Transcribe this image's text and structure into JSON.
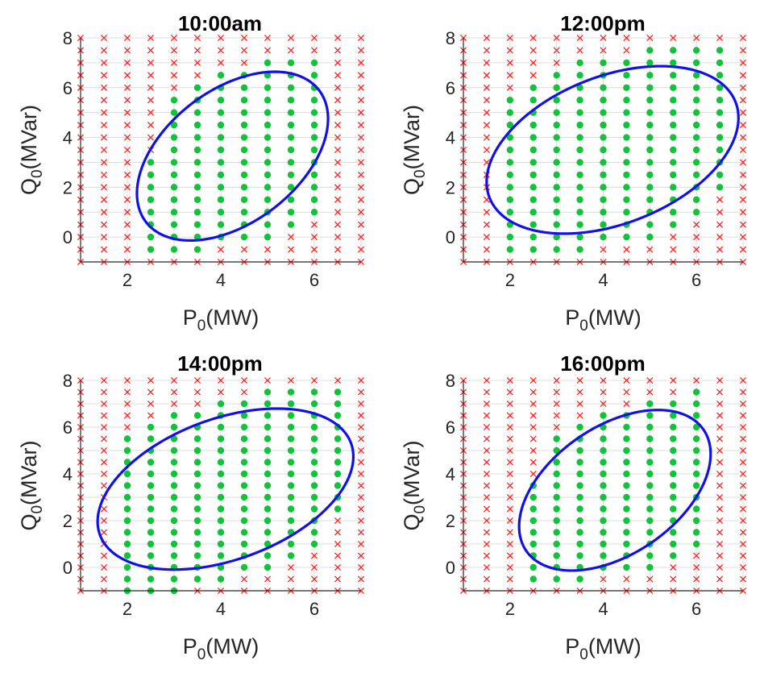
{
  "chart_data": [
    {
      "type": "scatter",
      "title": "10:00am",
      "xlabel": {
        "base": "P",
        "sub": "0",
        "unit": "(MW)"
      },
      "ylabel": {
        "base": "Q",
        "sub": "0",
        "unit": "(MVar)"
      },
      "xlim": [
        1,
        7
      ],
      "ylim": [
        -1,
        8
      ],
      "xticks": [
        2,
        4,
        6
      ],
      "yticks": [
        0,
        2,
        4,
        6,
        8
      ],
      "grid": true,
      "grid_step": {
        "x": 0.5,
        "y": 0.5
      },
      "feasible_columns": [
        {
          "x": 2.5,
          "y_min": -0.5,
          "y_max": 3.0
        },
        {
          "x": 3.0,
          "y_min": -0.5,
          "y_max": 5.5
        },
        {
          "x": 3.5,
          "y_min": -0.5,
          "y_max": 6.0
        },
        {
          "x": 4.0,
          "y_min": 0.0,
          "y_max": 6.5
        },
        {
          "x": 4.5,
          "y_min": 0.0,
          "y_max": 6.5
        },
        {
          "x": 5.0,
          "y_min": 0.0,
          "y_max": 7.0
        },
        {
          "x": 5.5,
          "y_min": 0.5,
          "y_max": 7.0
        },
        {
          "x": 6.0,
          "y_min": 1.0,
          "y_max": 7.0
        }
      ],
      "boundary_ellipse": {
        "center": [
          4.25,
          3.25
        ],
        "semi_axes": [
          1.75,
          3.55
        ],
        "rotation_deg": -20,
        "color": "#1010e8"
      },
      "feasible_color": "#12c23a",
      "infeasible_color": "#ff1f1f"
    },
    {
      "type": "scatter",
      "title": "12:00pm",
      "xlabel": {
        "base": "P",
        "sub": "0",
        "unit": "(MW)"
      },
      "ylabel": {
        "base": "Q",
        "sub": "0",
        "unit": "(MVar)"
      },
      "xlim": [
        1,
        7
      ],
      "ylim": [
        -1,
        8
      ],
      "xticks": [
        2,
        4,
        6
      ],
      "yticks": [
        0,
        2,
        4,
        6,
        8
      ],
      "grid": true,
      "grid_step": {
        "x": 0.5,
        "y": 0.5
      },
      "feasible_columns": [
        {
          "x": 2.0,
          "y_min": -0.5,
          "y_max": 5.5
        },
        {
          "x": 2.5,
          "y_min": -0.5,
          "y_max": 6.0
        },
        {
          "x": 3.0,
          "y_min": -0.5,
          "y_max": 6.5
        },
        {
          "x": 3.5,
          "y_min": -0.5,
          "y_max": 7.0
        },
        {
          "x": 4.0,
          "y_min": 0.0,
          "y_max": 7.0
        },
        {
          "x": 4.5,
          "y_min": 0.0,
          "y_max": 7.0
        },
        {
          "x": 5.0,
          "y_min": 0.0,
          "y_max": 7.5
        },
        {
          "x": 5.5,
          "y_min": 0.5,
          "y_max": 7.5
        },
        {
          "x": 6.0,
          "y_min": 1.0,
          "y_max": 7.5
        },
        {
          "x": 6.5,
          "y_min": 2.0,
          "y_max": 7.5
        }
      ],
      "boundary_ellipse": {
        "center": [
          4.2,
          3.5
        ],
        "semi_axes": [
          2.3,
          3.65
        ],
        "rotation_deg": -30,
        "color": "#1010e8"
      },
      "feasible_color": "#12c23a",
      "infeasible_color": "#ff1f1f"
    },
    {
      "type": "scatter",
      "title": "14:00pm",
      "xlabel": {
        "base": "P",
        "sub": "0",
        "unit": "(MW)"
      },
      "ylabel": {
        "base": "Q",
        "sub": "0",
        "unit": "(MVar)"
      },
      "xlim": [
        1,
        7
      ],
      "ylim": [
        -1,
        8
      ],
      "xticks": [
        2,
        4,
        6
      ],
      "yticks": [
        0,
        2,
        4,
        6,
        8
      ],
      "grid": true,
      "grid_step": {
        "x": 0.5,
        "y": 0.5
      },
      "feasible_columns": [
        {
          "x": 2.0,
          "y_min": -1.0,
          "y_max": 5.5
        },
        {
          "x": 2.5,
          "y_min": -1.0,
          "y_max": 6.0
        },
        {
          "x": 3.0,
          "y_min": -1.0,
          "y_max": 6.5
        },
        {
          "x": 3.5,
          "y_min": -0.5,
          "y_max": 6.5
        },
        {
          "x": 4.0,
          "y_min": -0.5,
          "y_max": 7.0
        },
        {
          "x": 4.5,
          "y_min": 0.0,
          "y_max": 7.0
        },
        {
          "x": 5.0,
          "y_min": 0.0,
          "y_max": 7.5
        },
        {
          "x": 5.5,
          "y_min": 0.5,
          "y_max": 7.5
        },
        {
          "x": 6.0,
          "y_min": 1.0,
          "y_max": 7.5
        },
        {
          "x": 6.5,
          "y_min": 2.5,
          "y_max": 7.5
        }
      ],
      "boundary_ellipse": {
        "center": [
          4.1,
          3.35
        ],
        "semi_axes": [
          2.3,
          3.75
        ],
        "rotation_deg": -30,
        "color": "#1010e8"
      },
      "feasible_color": "#12c23a",
      "infeasible_color": "#ff1f1f"
    },
    {
      "type": "scatter",
      "title": "16:00pm",
      "xlabel": {
        "base": "P",
        "sub": "0",
        "unit": "(MW)"
      },
      "ylabel": {
        "base": "Q",
        "sub": "0",
        "unit": "(MVar)"
      },
      "xlim": [
        1,
        7
      ],
      "ylim": [
        -1,
        8
      ],
      "xticks": [
        2,
        4,
        6
      ],
      "yticks": [
        0,
        2,
        4,
        6,
        8
      ],
      "grid": true,
      "grid_step": {
        "x": 0.5,
        "y": 0.5
      },
      "feasible_columns": [
        {
          "x": 2.5,
          "y_min": -0.5,
          "y_max": 3.5
        },
        {
          "x": 3.0,
          "y_min": -0.5,
          "y_max": 5.5
        },
        {
          "x": 3.5,
          "y_min": -0.5,
          "y_max": 6.0
        },
        {
          "x": 4.0,
          "y_min": 0.0,
          "y_max": 6.5
        },
        {
          "x": 4.5,
          "y_min": 0.0,
          "y_max": 6.5
        },
        {
          "x": 5.0,
          "y_min": 0.0,
          "y_max": 7.0
        },
        {
          "x": 5.5,
          "y_min": 0.5,
          "y_max": 7.0
        },
        {
          "x": 6.0,
          "y_min": 1.0,
          "y_max": 7.5
        }
      ],
      "boundary_ellipse": {
        "center": [
          4.25,
          3.3
        ],
        "semi_axes": [
          1.75,
          3.6
        ],
        "rotation_deg": -20,
        "color": "#1010e8"
      },
      "feasible_color": "#12c23a",
      "infeasible_color": "#ff1f1f"
    }
  ]
}
